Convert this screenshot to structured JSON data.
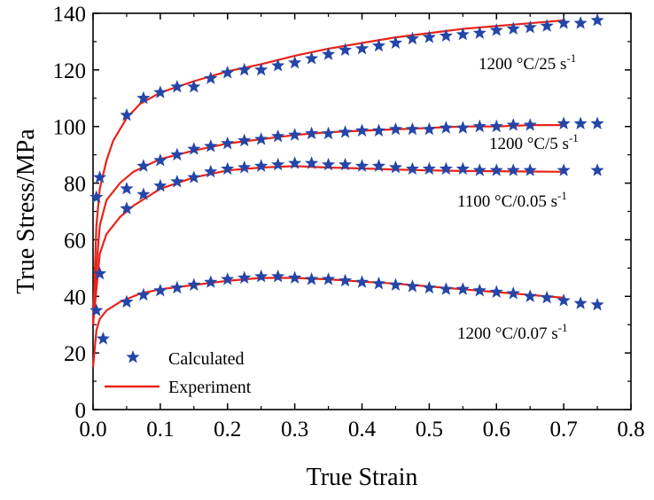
{
  "chart_data": {
    "type": "line",
    "xlabel": "True Strain",
    "ylabel": "True Stress/MPa",
    "xlim": [
      0.0,
      0.8
    ],
    "ylim": [
      0,
      140
    ],
    "xticks": [
      0.0,
      0.1,
      0.2,
      0.3,
      0.4,
      0.5,
      0.6,
      0.7,
      0.8
    ],
    "xtick_labels": [
      "0.0",
      "0.1",
      "0.2",
      "0.3",
      "0.4",
      "0.5",
      "0.6",
      "0.7",
      "0.8"
    ],
    "yticks": [
      0,
      20,
      40,
      60,
      80,
      100,
      120,
      140
    ],
    "ytick_labels": [
      "0",
      "20",
      "40",
      "60",
      "80",
      "100",
      "120",
      "140"
    ],
    "grid": false,
    "legend": {
      "placement": "bottom-left",
      "entries": [
        {
          "label": "Calculated",
          "marker": "star",
          "color": "#2446a8"
        },
        {
          "label": "Experiment",
          "marker": "line",
          "color": "#e8231a"
        }
      ]
    },
    "colors": {
      "experiment": "#e8231a",
      "calculated": "#2446a8"
    },
    "curves": [
      {
        "label_main": "1200 °C/25 s",
        "label_sup": "-1",
        "experiment": [
          [
            0.0,
            30
          ],
          [
            0.005,
            65
          ],
          [
            0.01,
            78
          ],
          [
            0.02,
            88
          ],
          [
            0.03,
            95
          ],
          [
            0.05,
            103
          ],
          [
            0.07,
            108
          ],
          [
            0.1,
            112
          ],
          [
            0.15,
            116
          ],
          [
            0.2,
            119.5
          ],
          [
            0.25,
            122
          ],
          [
            0.3,
            125
          ],
          [
            0.35,
            127.5
          ],
          [
            0.4,
            129.5
          ],
          [
            0.45,
            131.5
          ],
          [
            0.5,
            133
          ],
          [
            0.55,
            134.5
          ],
          [
            0.6,
            135.5
          ],
          [
            0.65,
            136.5
          ],
          [
            0.7,
            137.5
          ]
        ],
        "calculated": [
          [
            0.005,
            75
          ],
          [
            0.01,
            82
          ],
          [
            0.05,
            104
          ],
          [
            0.075,
            110
          ],
          [
            0.1,
            112
          ],
          [
            0.125,
            114
          ],
          [
            0.15,
            114
          ],
          [
            0.175,
            117
          ],
          [
            0.2,
            119
          ],
          [
            0.225,
            120
          ],
          [
            0.25,
            120
          ],
          [
            0.275,
            121.5
          ],
          [
            0.3,
            122.5
          ],
          [
            0.325,
            124
          ],
          [
            0.35,
            125.5
          ],
          [
            0.375,
            127
          ],
          [
            0.4,
            127.5
          ],
          [
            0.425,
            128.5
          ],
          [
            0.45,
            129.5
          ],
          [
            0.475,
            131
          ],
          [
            0.5,
            131.5
          ],
          [
            0.525,
            132
          ],
          [
            0.55,
            132.5
          ],
          [
            0.575,
            133
          ],
          [
            0.6,
            134
          ],
          [
            0.625,
            134.5
          ],
          [
            0.65,
            135
          ],
          [
            0.675,
            135.5
          ],
          [
            0.7,
            136.5
          ],
          [
            0.725,
            136.5
          ],
          [
            0.75,
            137.5
          ]
        ]
      },
      {
        "label_main": "1200 °C/5 s",
        "label_sup": "-1",
        "experiment": [
          [
            0.0,
            35
          ],
          [
            0.01,
            65
          ],
          [
            0.02,
            74
          ],
          [
            0.04,
            80
          ],
          [
            0.06,
            84
          ],
          [
            0.1,
            88.5
          ],
          [
            0.15,
            91.5
          ],
          [
            0.2,
            94
          ],
          [
            0.25,
            95.5
          ],
          [
            0.3,
            97
          ],
          [
            0.35,
            98
          ],
          [
            0.4,
            98.5
          ],
          [
            0.45,
            99
          ],
          [
            0.5,
            99.5
          ],
          [
            0.55,
            100
          ],
          [
            0.6,
            100
          ],
          [
            0.65,
            100.5
          ],
          [
            0.7,
            100.5
          ]
        ],
        "calculated": [
          [
            0.05,
            78
          ],
          [
            0.075,
            86
          ],
          [
            0.1,
            88
          ],
          [
            0.125,
            90
          ],
          [
            0.15,
            92
          ],
          [
            0.175,
            93
          ],
          [
            0.2,
            94
          ],
          [
            0.225,
            95
          ],
          [
            0.25,
            95.5
          ],
          [
            0.275,
            96.5
          ],
          [
            0.3,
            97
          ],
          [
            0.325,
            97.5
          ],
          [
            0.35,
            97.5
          ],
          [
            0.375,
            98
          ],
          [
            0.4,
            98.5
          ],
          [
            0.425,
            98.5
          ],
          [
            0.45,
            99
          ],
          [
            0.475,
            99
          ],
          [
            0.5,
            99
          ],
          [
            0.525,
            99.5
          ],
          [
            0.55,
            99.5
          ],
          [
            0.575,
            100
          ],
          [
            0.6,
            100
          ],
          [
            0.625,
            100.5
          ],
          [
            0.65,
            100.5
          ],
          [
            0.7,
            101
          ],
          [
            0.725,
            101
          ],
          [
            0.75,
            101
          ]
        ]
      },
      {
        "label_main": "1100 °C/0.05 s",
        "label_sup": "-1",
        "experiment": [
          [
            0.0,
            30
          ],
          [
            0.01,
            55
          ],
          [
            0.02,
            62
          ],
          [
            0.04,
            68
          ],
          [
            0.06,
            72
          ],
          [
            0.1,
            78
          ],
          [
            0.15,
            82
          ],
          [
            0.2,
            84.5
          ],
          [
            0.25,
            85.5
          ],
          [
            0.3,
            86
          ],
          [
            0.35,
            85.5
          ],
          [
            0.4,
            85.2
          ],
          [
            0.45,
            84.8
          ],
          [
            0.5,
            84.5
          ],
          [
            0.55,
            84.3
          ],
          [
            0.6,
            84.2
          ],
          [
            0.65,
            84.1
          ],
          [
            0.7,
            84
          ]
        ],
        "calculated": [
          [
            0.05,
            71
          ],
          [
            0.075,
            76
          ],
          [
            0.1,
            79
          ],
          [
            0.125,
            80.5
          ],
          [
            0.15,
            82
          ],
          [
            0.175,
            84
          ],
          [
            0.2,
            85
          ],
          [
            0.225,
            85.5
          ],
          [
            0.25,
            86
          ],
          [
            0.275,
            86.5
          ],
          [
            0.3,
            87
          ],
          [
            0.325,
            87
          ],
          [
            0.35,
            86.5
          ],
          [
            0.375,
            86.5
          ],
          [
            0.4,
            86
          ],
          [
            0.425,
            86
          ],
          [
            0.45,
            85.5
          ],
          [
            0.475,
            85
          ],
          [
            0.5,
            85
          ],
          [
            0.525,
            85
          ],
          [
            0.55,
            85
          ],
          [
            0.575,
            84.5
          ],
          [
            0.6,
            84.5
          ],
          [
            0.625,
            84.5
          ],
          [
            0.65,
            84.5
          ],
          [
            0.7,
            84.5
          ],
          [
            0.75,
            84.5
          ]
        ]
      },
      {
        "label_main": "1200 °C/0.07 s",
        "label_sup": "-1",
        "experiment": [
          [
            0.0,
            15
          ],
          [
            0.005,
            28
          ],
          [
            0.01,
            32
          ],
          [
            0.02,
            35
          ],
          [
            0.04,
            38
          ],
          [
            0.07,
            41
          ],
          [
            0.1,
            42.5
          ],
          [
            0.15,
            44
          ],
          [
            0.2,
            45.5
          ],
          [
            0.25,
            46.5
          ],
          [
            0.3,
            46.5
          ],
          [
            0.35,
            46
          ],
          [
            0.4,
            45.2
          ],
          [
            0.45,
            44.5
          ],
          [
            0.5,
            43.5
          ],
          [
            0.55,
            42.5
          ],
          [
            0.6,
            41.5
          ],
          [
            0.65,
            40.5
          ],
          [
            0.7,
            39.5
          ]
        ],
        "calculated": [
          [
            0.005,
            35
          ],
          [
            0.01,
            48
          ],
          [
            0.015,
            25
          ],
          [
            0.05,
            38
          ],
          [
            0.075,
            40.5
          ],
          [
            0.1,
            42
          ],
          [
            0.125,
            43
          ],
          [
            0.15,
            44
          ],
          [
            0.175,
            45
          ],
          [
            0.2,
            46
          ],
          [
            0.225,
            46.5
          ],
          [
            0.25,
            47
          ],
          [
            0.275,
            47
          ],
          [
            0.3,
            46.5
          ],
          [
            0.325,
            46
          ],
          [
            0.35,
            46
          ],
          [
            0.375,
            45.5
          ],
          [
            0.4,
            45
          ],
          [
            0.425,
            44.5
          ],
          [
            0.45,
            44
          ],
          [
            0.475,
            43.5
          ],
          [
            0.5,
            43
          ],
          [
            0.525,
            42.5
          ],
          [
            0.55,
            42.5
          ],
          [
            0.575,
            42
          ],
          [
            0.6,
            41.5
          ],
          [
            0.625,
            41
          ],
          [
            0.65,
            40
          ],
          [
            0.675,
            39.5
          ],
          [
            0.7,
            38.5
          ],
          [
            0.725,
            37.5
          ],
          [
            0.75,
            37
          ]
        ]
      }
    ]
  }
}
